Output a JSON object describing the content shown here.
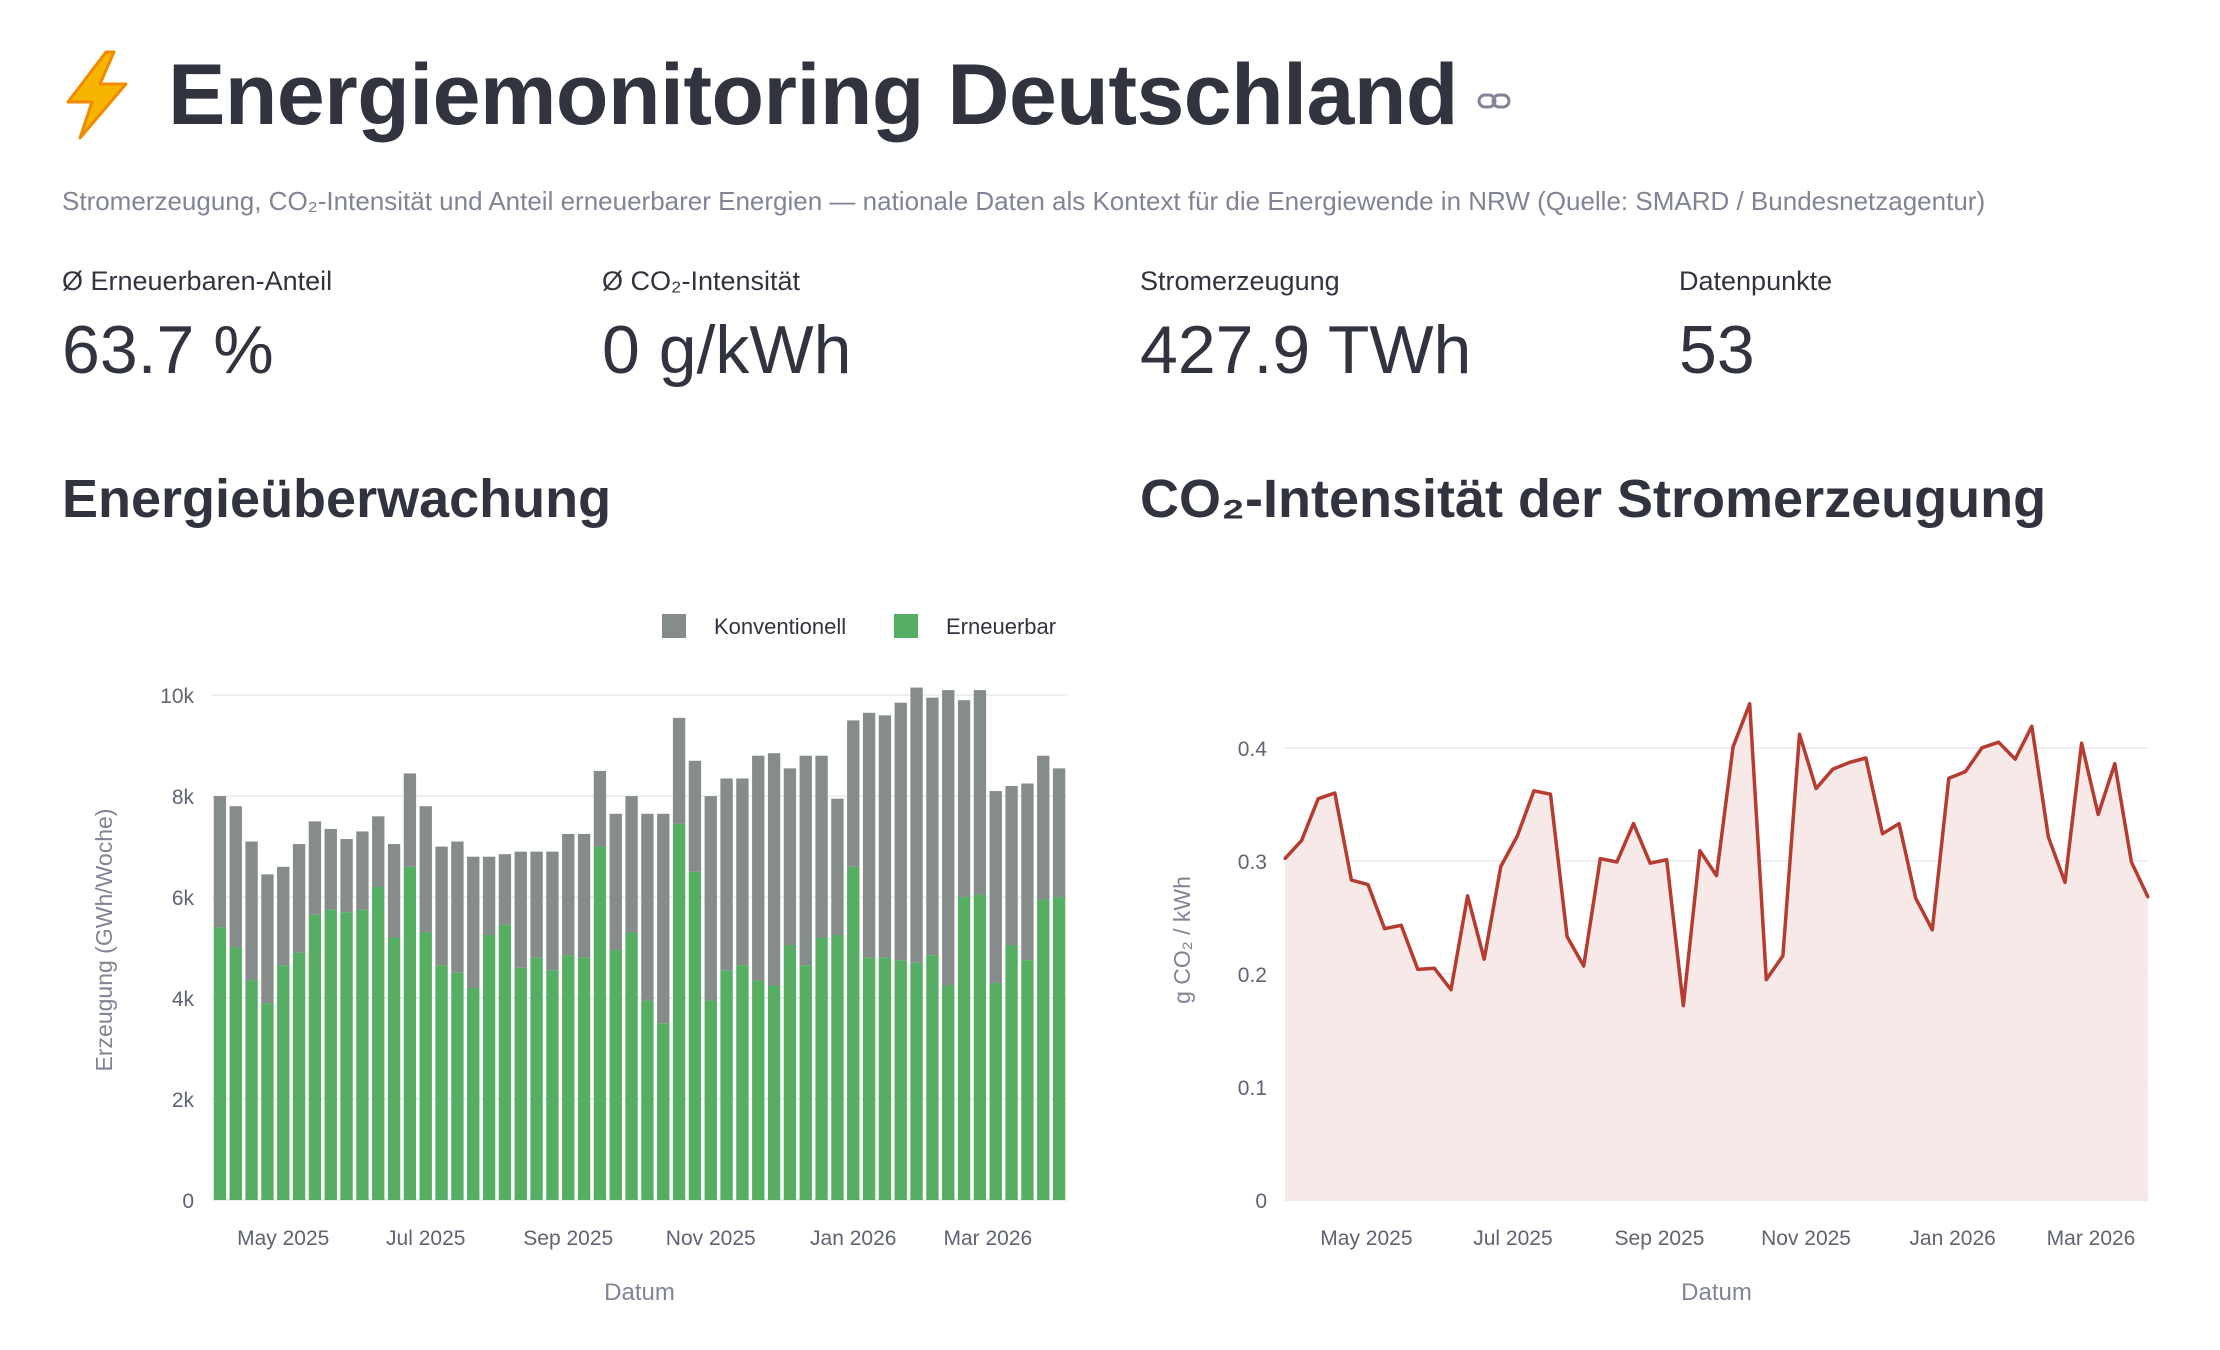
{
  "header": {
    "icon": "lightning-bolt-icon",
    "title": "Energiemonitoring Deutschland",
    "link_icon": "link-icon",
    "subtitle": "Stromerzeugung, CO₂-Intensität und Anteil erneuerbarer Energien — nationale Daten als Kontext für die Energiewende in NRW (Quelle: SMARD / Bundesnetzagentur)"
  },
  "metrics": [
    {
      "label": "Ø Erneuerbaren-Anteil",
      "value": "63.7 %"
    },
    {
      "label": "Ø CO₂-Intensität",
      "value": "0 g/kWh"
    },
    {
      "label": "Stromerzeugung",
      "value": "427.9 TWh"
    },
    {
      "label": "Datenpunkte",
      "value": "53"
    }
  ],
  "sections": {
    "left_title": "Energieüberwachung",
    "right_title": "CO₂-Intensität der Stromerzeugung"
  },
  "colors": {
    "conventional": "#858c8a",
    "renewable": "#55ae64",
    "co2_line": "#b53c30",
    "co2_fill": "#f7e5e5",
    "grid": "#e9eaee",
    "axis_text": "#5f6372"
  },
  "chart_data": [
    {
      "type": "bar",
      "stacked": true,
      "title": "Energieüberwachung",
      "xlabel": "Datum",
      "ylabel": "Erzeugung (GWh/Woche)",
      "ylim": [
        0,
        10300
      ],
      "yticks": [
        0,
        2000,
        4000,
        6000,
        8000,
        10000
      ],
      "ytick_labels": [
        "0",
        "2k",
        "4k",
        "6k",
        "8k",
        "10k"
      ],
      "xtick_labels": [
        "May 2025",
        "Jul 2025",
        "Sep 2025",
        "Nov 2025",
        "Jan 2026",
        "Mar 2026"
      ],
      "xtick_positions": [
        4.5,
        13.5,
        22.5,
        31.5,
        40.5,
        49
      ],
      "legend": [
        "Konventionell",
        "Erneuerbar"
      ],
      "legend_position": "top-right",
      "series": [
        {
          "name": "Erneuerbar",
          "values": [
            5400,
            5000,
            4350,
            3900,
            4650,
            4900,
            5650,
            5750,
            5700,
            5750,
            6200,
            5200,
            6600,
            5300,
            4650,
            4500,
            4200,
            5250,
            5450,
            4600,
            4800,
            4550,
            4850,
            4800,
            7000,
            4950,
            5300,
            3950,
            3500,
            7450,
            6500,
            3950,
            4550,
            4650,
            4350,
            4250,
            5050,
            4650,
            5200,
            5250,
            6600,
            4800,
            4800,
            4750,
            4700,
            4850,
            4250,
            6000,
            6050,
            4300,
            5050,
            4750,
            5950,
            6000
          ]
        },
        {
          "name": "Konventionell",
          "values": [
            2600,
            2800,
            2750,
            2550,
            1950,
            2150,
            1850,
            1600,
            1450,
            1550,
            1400,
            1850,
            1850,
            2500,
            2350,
            2600,
            2600,
            1550,
            1400,
            2300,
            2100,
            2350,
            2400,
            2450,
            1500,
            2700,
            2700,
            3700,
            4150,
            2100,
            2200,
            4050,
            3800,
            3700,
            4450,
            4600,
            3500,
            4150,
            3600,
            2700,
            2900,
            4850,
            4800,
            5100,
            5450,
            5100,
            5850,
            3900,
            4050,
            3800,
            3150,
            3500,
            2850,
            2550
          ]
        }
      ]
    },
    {
      "type": "area",
      "title": "CO₂-Intensität der Stromerzeugung",
      "xlabel": "Datum",
      "ylabel": "g CO₂ / kWh",
      "ylim": [
        0,
        0.46
      ],
      "yticks": [
        0,
        0.1,
        0.2,
        0.3,
        0.4
      ],
      "ytick_labels": [
        "0",
        "0.1",
        "0.2",
        "0.3",
        "0.4"
      ],
      "xtick_labels": [
        "May 2025",
        "Jul 2025",
        "Sep 2025",
        "Nov 2025",
        "Jan 2026",
        "Mar 2026"
      ],
      "xtick_positions": [
        4.5,
        13.5,
        22.5,
        31.5,
        40.5,
        49
      ],
      "values": [
        0.302,
        0.318,
        0.355,
        0.36,
        0.283,
        0.279,
        0.24,
        0.243,
        0.204,
        0.205,
        0.186,
        0.269,
        0.213,
        0.295,
        0.322,
        0.362,
        0.359,
        0.233,
        0.207,
        0.302,
        0.299,
        0.333,
        0.298,
        0.301,
        0.172,
        0.309,
        0.287,
        0.401,
        0.439,
        0.195,
        0.216,
        0.412,
        0.364,
        0.381,
        0.387,
        0.391,
        0.324,
        0.333,
        0.267,
        0.239,
        0.373,
        0.379,
        0.4,
        0.405,
        0.39,
        0.419,
        0.321,
        0.281,
        0.404,
        0.341,
        0.386,
        0.299,
        0.268
      ]
    }
  ]
}
